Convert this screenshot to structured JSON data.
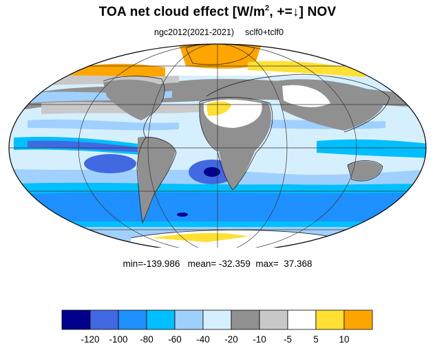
{
  "title": {
    "main": "TOA net cloud effect [W/m",
    "sup": "2",
    "rest": ", +=↓]  NOV"
  },
  "subtitle": {
    "left": "ngc2012(2021-2021)",
    "right": "sclf0+tclf0"
  },
  "stats": {
    "text": "min=-139.986   mean= -32.359  max=  37.368"
  },
  "colorbar": {
    "labels": [
      "-120",
      "-100",
      "-80",
      "-60",
      "-40",
      "-20",
      "-10",
      "-5",
      "5",
      "10"
    ],
    "colors": [
      "#00008b",
      "#4169e1",
      "#1e90ff",
      "#00bfff",
      "#a0d0ff",
      "#d6efff",
      "#909090",
      "#c8c8c8",
      "#ffffff",
      "#ffe033",
      "#ffa500"
    ]
  },
  "map": {
    "projection": "Mollweide",
    "ocean_color": "#d6efff"
  }
}
